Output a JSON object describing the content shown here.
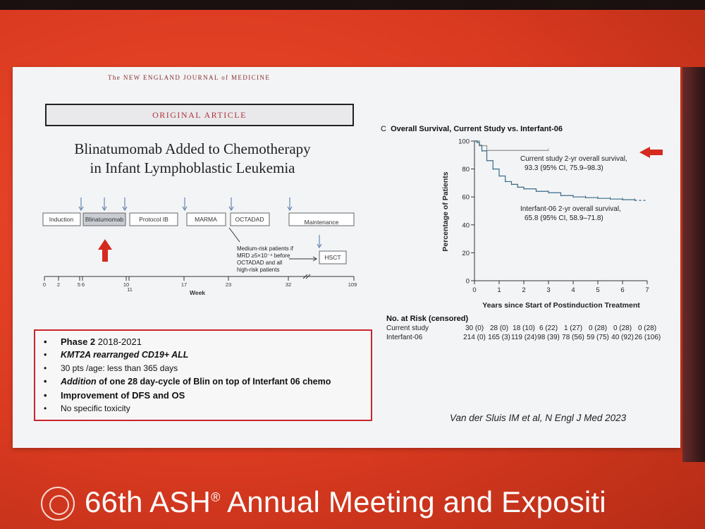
{
  "journal": "The NEW ENGLAND JOURNAL of MEDICINE",
  "article_type": "ORIGINAL ARTICLE",
  "title_line1": "Blinatumomab Added to Chemotherapy",
  "title_line2": "in Infant Lymphoblastic Leukemia",
  "timeline": {
    "phases": [
      "Induction",
      "Blinatumomab",
      "Protocol IB",
      "MARMA",
      "OCTADAD",
      "Maintenance"
    ],
    "hsct": "HSCT",
    "note_lines": [
      "Medium-risk patients if",
      "MRD ≥5×10⁻⁴ before",
      "OCTADAD and all",
      "high-risk patients"
    ],
    "ticks": [
      "0",
      "2",
      "5",
      "6",
      "10",
      "11",
      "17",
      "23",
      "32",
      "109"
    ],
    "axis_label": "Week"
  },
  "bullets": {
    "b1_bold": "Phase 2",
    "b1_rest": " 2018-2021",
    "b2": "KMT2A rearranged CD19+ ALL",
    "b3": "30 pts /age: less than 365 days",
    "b4_em": "Addition",
    "b4_rest": " of one 28 day-cycle of Blin on top of Interfant 06 chemo",
    "b5": "Improvement of DFS and OS",
    "b6": "No specific toxicity"
  },
  "citation": "Van der Sluis IM et al, N Engl J Med 2023",
  "chart_data": {
    "type": "line",
    "panel_letter": "C",
    "title": "Overall Survival, Current Study vs. Interfant-06",
    "xlabel": "Years since Start of Postinduction Treatment",
    "ylabel": "Percentage of Patients",
    "xlim": [
      0,
      7
    ],
    "ylim": [
      0,
      100
    ],
    "xticks": [
      "0",
      "1",
      "2",
      "3",
      "4",
      "5",
      "6",
      "7"
    ],
    "yticks": [
      "0",
      "20",
      "40",
      "60",
      "80",
      "100"
    ],
    "series": [
      {
        "name": "Current study",
        "color": "#999999",
        "x": [
          0,
          0.2,
          0.5,
          3.0
        ],
        "y": [
          100,
          96.7,
          93.3,
          93.3
        ]
      },
      {
        "name": "Interfant-06",
        "color": "#3a6b8a",
        "x": [
          0,
          0.1,
          0.2,
          0.3,
          0.5,
          0.75,
          1.0,
          1.25,
          1.5,
          1.75,
          2.0,
          2.5,
          3.0,
          3.5,
          4.0,
          4.5,
          5.0,
          5.5,
          6.0,
          6.5
        ],
        "y": [
          100,
          99,
          97,
          93,
          86,
          80,
          75,
          71,
          69,
          67,
          65.8,
          64,
          63,
          61,
          60,
          59.5,
          59,
          58.5,
          58,
          57.5
        ]
      }
    ],
    "annotation_current_lines": [
      "Current study 2-yr overall survival,",
      "93.3 (95% CI, 75.9–98.3)"
    ],
    "annotation_interfant_lines": [
      "Interfant-06 2-yr overall survival,",
      "65.8 (95% CI, 58.9–71.8)"
    ],
    "risk_table": {
      "header": "No. at Risk (censored)",
      "rows": [
        {
          "label": "Current study",
          "values": [
            "30 (0)",
            "28 (0)",
            "18 (10)",
            "6 (22)",
            "1 (27)",
            "0 (28)",
            "0 (28)",
            "0 (28)"
          ]
        },
        {
          "label": "Interfant-06",
          "values": [
            "214 (0)",
            "165 (3)",
            "119 (24)",
            "98 (39)",
            "78 (56)",
            "59 (75)",
            "40 (92)",
            "26 (106)"
          ]
        }
      ]
    }
  },
  "banner": {
    "pre": "66th ASH",
    "reg": "®",
    "post": " Annual Meeting and Expositi"
  }
}
